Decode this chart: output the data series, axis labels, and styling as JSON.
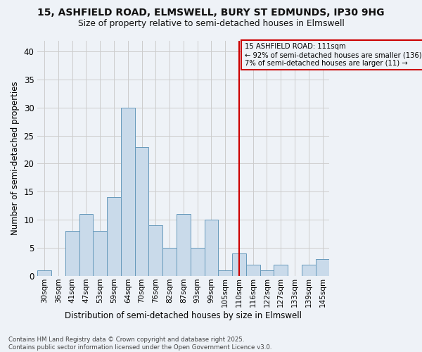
{
  "title1": "15, ASHFIELD ROAD, ELMSWELL, BURY ST EDMUNDS, IP30 9HG",
  "title2": "Size of property relative to semi-detached houses in Elmswell",
  "xlabel": "Distribution of semi-detached houses by size in Elmswell",
  "ylabel": "Number of semi-detached properties",
  "categories": [
    "30sqm",
    "36sqm",
    "41sqm",
    "47sqm",
    "53sqm",
    "59sqm",
    "64sqm",
    "70sqm",
    "76sqm",
    "82sqm",
    "87sqm",
    "93sqm",
    "99sqm",
    "105sqm",
    "110sqm",
    "116sqm",
    "122sqm",
    "127sqm",
    "133sqm",
    "139sqm",
    "145sqm"
  ],
  "values": [
    1,
    0,
    8,
    11,
    8,
    14,
    30,
    23,
    9,
    5,
    11,
    5,
    10,
    1,
    4,
    2,
    1,
    2,
    0,
    2,
    3
  ],
  "bar_color": "#c9daea",
  "bar_edge_color": "#6699bb",
  "grid_color": "#cccccc",
  "bg_color": "#eef2f7",
  "vline_x_index": 14,
  "vline_color": "#cc0000",
  "annotation_title": "15 ASHFIELD ROAD: 111sqm",
  "annotation_line1": "← 92% of semi-detached houses are smaller (136)",
  "annotation_line2": "7% of semi-detached houses are larger (11) →",
  "annotation_box_edgecolor": "#cc0000",
  "footer1": "Contains HM Land Registry data © Crown copyright and database right 2025.",
  "footer2": "Contains public sector information licensed under the Open Government Licence v3.0.",
  "ylim_max": 42,
  "yticks": [
    0,
    5,
    10,
    15,
    20,
    25,
    30,
    35,
    40
  ]
}
